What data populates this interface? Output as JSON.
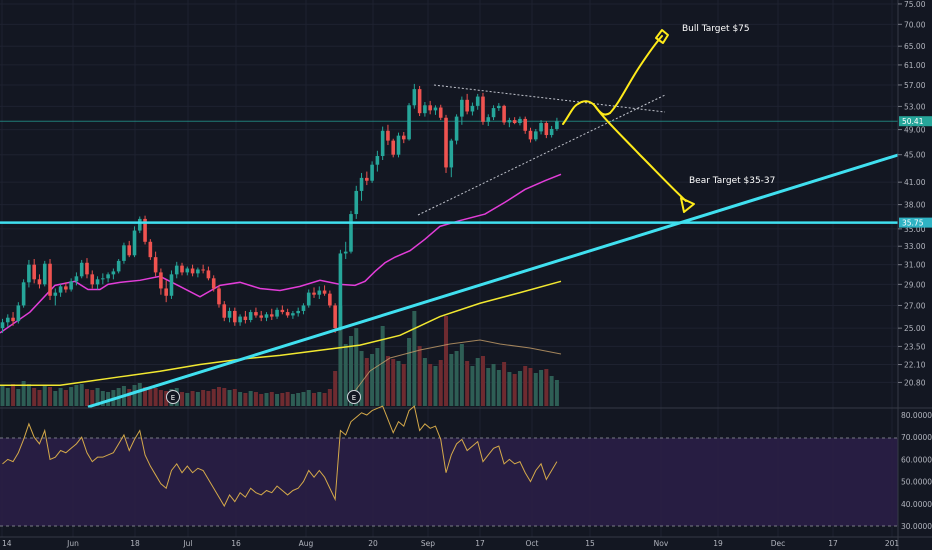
{
  "chart_data": {
    "type": "candlestick",
    "price_axis": {
      "ticks": [
        "75.00",
        "70.00",
        "65.00",
        "61.00",
        "57.00",
        "53.00",
        "49.00",
        "45.00",
        "41.00",
        "38.00",
        "35.00",
        "33.00",
        "31.00",
        "29.00",
        "27.00",
        "25.00",
        "23.50",
        "22.10",
        "20.80"
      ],
      "scale": "log",
      "range": [
        20.0,
        75.5
      ]
    },
    "x_axis": {
      "ticks": [
        "14",
        "Jun",
        "18",
        "Jul",
        "16",
        "Aug",
        "20",
        "Sep",
        "17",
        "Oct",
        "15",
        "Nov",
        "19",
        "Dec",
        "17",
        "201"
      ]
    },
    "price_labels": {
      "last": "50.41",
      "support": "35.75"
    },
    "annotations": {
      "bull": "Bull Target $75",
      "bear": "Bear Target $35-37"
    },
    "event_markers": [
      "E",
      "E"
    ],
    "rsi": {
      "ticks": [
        "80.0000",
        "70.0000",
        "60.0000",
        "50.0000",
        "40.0000",
        "30.0000"
      ],
      "upper": 70,
      "lower": 30
    },
    "candles": [
      [
        25.0,
        25.8,
        24.6,
        25.5
      ],
      [
        25.5,
        26.2,
        25.1,
        25.9
      ],
      [
        25.9,
        26.4,
        25.2,
        25.6
      ],
      [
        25.6,
        27.3,
        25.4,
        27.0
      ],
      [
        27.0,
        29.5,
        26.8,
        29.2
      ],
      [
        29.2,
        31.5,
        28.7,
        31.0
      ],
      [
        31.0,
        31.6,
        29.1,
        29.5
      ],
      [
        29.5,
        30.0,
        28.6,
        29.0
      ],
      [
        29.0,
        31.4,
        28.8,
        31.1
      ],
      [
        31.1,
        31.6,
        27.5,
        27.9
      ],
      [
        27.9,
        28.6,
        27.0,
        28.2
      ],
      [
        28.2,
        29.0,
        27.8,
        28.8
      ],
      [
        28.8,
        29.2,
        28.2,
        28.5
      ],
      [
        28.5,
        29.6,
        28.3,
        29.3
      ],
      [
        29.3,
        30.2,
        28.9,
        29.8
      ],
      [
        29.8,
        31.5,
        29.6,
        31.2
      ],
      [
        31.2,
        31.7,
        29.6,
        30.0
      ],
      [
        30.0,
        30.4,
        28.6,
        29.0
      ],
      [
        29.0,
        29.8,
        28.5,
        29.5
      ],
      [
        29.5,
        30.1,
        29.0,
        29.6
      ],
      [
        29.6,
        30.2,
        29.2,
        30.0
      ],
      [
        30.0,
        30.6,
        29.5,
        30.3
      ],
      [
        30.3,
        31.6,
        30.1,
        31.4
      ],
      [
        31.4,
        33.4,
        31.1,
        33.1
      ],
      [
        33.1,
        33.6,
        31.8,
        32.0
      ],
      [
        32.0,
        35.3,
        31.8,
        34.8
      ],
      [
        34.8,
        36.5,
        34.5,
        36.2
      ],
      [
        36.2,
        36.6,
        33.2,
        33.5
      ],
      [
        33.5,
        33.8,
        31.5,
        31.8
      ],
      [
        31.8,
        32.4,
        29.8,
        30.2
      ],
      [
        30.2,
        30.6,
        28.0,
        28.6
      ],
      [
        28.6,
        29.4,
        27.3,
        27.9
      ],
      [
        27.9,
        30.4,
        27.6,
        30.0
      ],
      [
        30.0,
        31.3,
        29.6,
        30.9
      ],
      [
        30.9,
        31.2,
        29.9,
        30.2
      ],
      [
        30.2,
        30.8,
        29.9,
        30.6
      ],
      [
        30.6,
        31.0,
        29.8,
        30.1
      ],
      [
        30.1,
        30.7,
        29.7,
        30.5
      ],
      [
        30.5,
        31.0,
        30.1,
        30.4
      ],
      [
        30.4,
        30.8,
        29.4,
        29.6
      ],
      [
        29.6,
        29.9,
        28.3,
        28.6
      ],
      [
        28.6,
        28.9,
        26.8,
        27.1
      ],
      [
        27.1,
        27.4,
        25.6,
        25.9
      ],
      [
        25.9,
        26.8,
        25.5,
        26.5
      ],
      [
        26.5,
        26.8,
        25.2,
        25.5
      ],
      [
        25.5,
        26.2,
        25.2,
        26.0
      ],
      [
        26.0,
        26.5,
        25.4,
        25.7
      ],
      [
        25.7,
        26.6,
        25.5,
        26.4
      ],
      [
        26.4,
        26.8,
        25.9,
        26.1
      ],
      [
        26.1,
        26.5,
        25.6,
        25.9
      ],
      [
        25.9,
        26.4,
        25.6,
        26.2
      ],
      [
        26.2,
        26.7,
        25.7,
        26.0
      ],
      [
        26.0,
        26.8,
        25.8,
        26.6
      ],
      [
        26.6,
        27.0,
        26.2,
        26.4
      ],
      [
        26.4,
        26.7,
        25.9,
        26.1
      ],
      [
        26.1,
        26.5,
        25.8,
        26.3
      ],
      [
        26.3,
        26.8,
        26.0,
        26.5
      ],
      [
        26.5,
        27.2,
        26.2,
        27.0
      ],
      [
        27.0,
        28.5,
        26.8,
        28.2
      ],
      [
        28.2,
        28.7,
        27.7,
        28.0
      ],
      [
        28.0,
        28.8,
        27.6,
        28.4
      ],
      [
        28.4,
        28.9,
        27.9,
        28.1
      ],
      [
        28.1,
        28.4,
        26.8,
        27.0
      ],
      [
        27.0,
        27.2,
        24.6,
        25.0
      ],
      [
        25.0,
        32.6,
        24.8,
        32.2
      ],
      [
        32.2,
        33.5,
        31.6,
        32.4
      ],
      [
        32.4,
        37.2,
        32.2,
        36.8
      ],
      [
        36.8,
        40.5,
        36.2,
        39.8
      ],
      [
        39.8,
        42.3,
        38.5,
        41.6
      ],
      [
        41.6,
        42.5,
        40.6,
        41.2
      ],
      [
        41.2,
        44.0,
        40.9,
        43.5
      ],
      [
        43.5,
        45.6,
        42.5,
        44.8
      ],
      [
        44.8,
        49.5,
        44.2,
        48.8
      ],
      [
        48.8,
        49.8,
        46.5,
        47.2
      ],
      [
        47.2,
        47.5,
        44.6,
        45.0
      ],
      [
        45.0,
        48.5,
        44.6,
        48.0
      ],
      [
        48.0,
        48.6,
        46.8,
        47.4
      ],
      [
        47.4,
        53.6,
        47.2,
        53.2
      ],
      [
        53.2,
        57.2,
        52.6,
        56.2
      ],
      [
        56.2,
        56.8,
        51.3,
        51.8
      ],
      [
        51.8,
        53.8,
        51.2,
        53.2
      ],
      [
        53.2,
        54.0,
        51.6,
        52.3
      ],
      [
        52.3,
        53.2,
        51.5,
        52.8
      ],
      [
        52.8,
        53.3,
        50.6,
        51.0
      ],
      [
        51.0,
        51.5,
        42.3,
        43.1
      ],
      [
        43.1,
        47.5,
        41.7,
        47.2
      ],
      [
        47.2,
        51.6,
        46.6,
        51.2
      ],
      [
        51.2,
        54.8,
        49.8,
        54.2
      ],
      [
        54.2,
        55.3,
        51.6,
        52.1
      ],
      [
        52.1,
        53.7,
        51.4,
        53.1
      ],
      [
        53.1,
        55.3,
        52.4,
        54.8
      ],
      [
        54.8,
        55.5,
        49.8,
        50.3
      ],
      [
        50.3,
        51.6,
        49.6,
        51.1
      ],
      [
        51.1,
        53.2,
        50.6,
        52.7
      ],
      [
        52.7,
        53.6,
        52.2,
        53.1
      ],
      [
        53.1,
        53.3,
        49.8,
        50.2
      ],
      [
        50.2,
        51.0,
        49.4,
        50.6
      ],
      [
        50.6,
        51.1,
        49.9,
        50.1
      ],
      [
        50.1,
        51.2,
        49.7,
        50.8
      ],
      [
        50.8,
        51.2,
        48.3,
        48.8
      ],
      [
        48.8,
        49.3,
        46.9,
        47.4
      ],
      [
        47.4,
        49.1,
        47.1,
        48.7
      ],
      [
        48.7,
        50.6,
        48.2,
        50.1
      ],
      [
        50.1,
        50.4,
        47.6,
        48.1
      ],
      [
        48.1,
        49.6,
        47.7,
        49.1
      ],
      [
        49.1,
        51.0,
        48.8,
        50.4
      ]
    ],
    "volume": [
      0.2,
      0.18,
      0.22,
      0.17,
      0.25,
      0.22,
      0.18,
      0.16,
      0.2,
      0.19,
      0.15,
      0.18,
      0.16,
      0.19,
      0.21,
      0.22,
      0.17,
      0.16,
      0.18,
      0.15,
      0.14,
      0.16,
      0.18,
      0.2,
      0.17,
      0.21,
      0.23,
      0.19,
      0.17,
      0.18,
      0.16,
      0.15,
      0.17,
      0.18,
      0.14,
      0.13,
      0.15,
      0.14,
      0.16,
      0.15,
      0.17,
      0.19,
      0.18,
      0.16,
      0.17,
      0.14,
      0.13,
      0.15,
      0.14,
      0.12,
      0.13,
      0.14,
      0.12,
      0.13,
      0.14,
      0.12,
      0.13,
      0.14,
      0.16,
      0.13,
      0.14,
      0.13,
      0.17,
      0.35,
      1.0,
      0.62,
      0.7,
      0.78,
      0.55,
      0.48,
      0.52,
      0.58,
      0.8,
      0.5,
      0.47,
      0.45,
      0.42,
      0.68,
      0.95,
      0.6,
      0.48,
      0.42,
      0.4,
      0.46,
      0.9,
      0.52,
      0.55,
      0.62,
      0.45,
      0.4,
      0.48,
      0.5,
      0.38,
      0.42,
      0.36,
      0.44,
      0.34,
      0.32,
      0.35,
      0.4,
      0.38,
      0.33,
      0.36,
      0.37,
      0.3,
      0.26
    ],
    "rsi_values": [
      58,
      60,
      59,
      63,
      69,
      76,
      70,
      67,
      73,
      60,
      61,
      64,
      63,
      65,
      67,
      70,
      63,
      59,
      61,
      61,
      62,
      63,
      67,
      71,
      64,
      69,
      73,
      62,
      57,
      53,
      49,
      47,
      55,
      58,
      54,
      57,
      54,
      56,
      55,
      51,
      47,
      43,
      39,
      44,
      41,
      45,
      43,
      47,
      45,
      44,
      46,
      45,
      48,
      46,
      44,
      46,
      47,
      50,
      55,
      52,
      55,
      52,
      47,
      42,
      73,
      71,
      77,
      79,
      81,
      80,
      82,
      83,
      84,
      78,
      72,
      77,
      75,
      82,
      84,
      73,
      76,
      74,
      75,
      69,
      54,
      62,
      67,
      69,
      64,
      66,
      68,
      59,
      62,
      65,
      66,
      58,
      60,
      58,
      59,
      54,
      50,
      55,
      58,
      51,
      55,
      59
    ],
    "sma50": [
      [
        0,
        24.6
      ],
      [
        30,
        26.4
      ],
      [
        55,
        28.9
      ],
      [
        75,
        29.3
      ],
      [
        88,
        28.5
      ],
      [
        100,
        28.5
      ],
      [
        108,
        29.0
      ],
      [
        120,
        29.2
      ],
      [
        140,
        29.4
      ],
      [
        160,
        29.8
      ],
      [
        180,
        28.8
      ],
      [
        200,
        27.8
      ],
      [
        220,
        28.9
      ],
      [
        240,
        29.2
      ],
      [
        260,
        28.6
      ],
      [
        280,
        28.4
      ],
      [
        300,
        28.8
      ],
      [
        320,
        29.4
      ],
      [
        340,
        29.0
      ],
      [
        355,
        28.9
      ],
      [
        365,
        29.3
      ],
      [
        375,
        30.3
      ],
      [
        385,
        31.2
      ],
      [
        395,
        31.8
      ],
      [
        410,
        32.5
      ],
      [
        425,
        33.8
      ],
      [
        440,
        35.3
      ],
      [
        460,
        36.0
      ],
      [
        485,
        36.8
      ],
      [
        505,
        38.3
      ],
      [
        525,
        40.0
      ],
      [
        545,
        41.2
      ],
      [
        561,
        42.1
      ]
    ],
    "sma200": [
      [
        0,
        20.6
      ],
      [
        60,
        20.6
      ],
      [
        120,
        21.2
      ],
      [
        160,
        21.6
      ],
      [
        200,
        22.1
      ],
      [
        240,
        22.5
      ],
      [
        280,
        22.8
      ],
      [
        320,
        23.2
      ],
      [
        360,
        23.6
      ],
      [
        400,
        24.4
      ],
      [
        440,
        26.0
      ],
      [
        480,
        27.2
      ],
      [
        520,
        28.2
      ],
      [
        561,
        29.3
      ]
    ],
    "vol_ma": [
      [
        355,
        0.15
      ],
      [
        370,
        0.35
      ],
      [
        390,
        0.48
      ],
      [
        420,
        0.56
      ],
      [
        450,
        0.62
      ],
      [
        480,
        0.66
      ],
      [
        500,
        0.62
      ],
      [
        530,
        0.58
      ],
      [
        561,
        0.52
      ]
    ],
    "colors": {
      "background": "#131722",
      "rsi_band": "#2a1e46",
      "up": "#26a69a",
      "down": "#ef5350",
      "vol_up": "#2e5e55",
      "vol_down": "#6e2b30",
      "sma50": "#e23dd8",
      "sma200": "#f2e830",
      "trendline": "#40e0f0",
      "drawing": "#ffeb1a",
      "rsi_line": "#d4a94a",
      "last_price": "#26a69a",
      "support_badge": "#2fb3c4"
    }
  }
}
